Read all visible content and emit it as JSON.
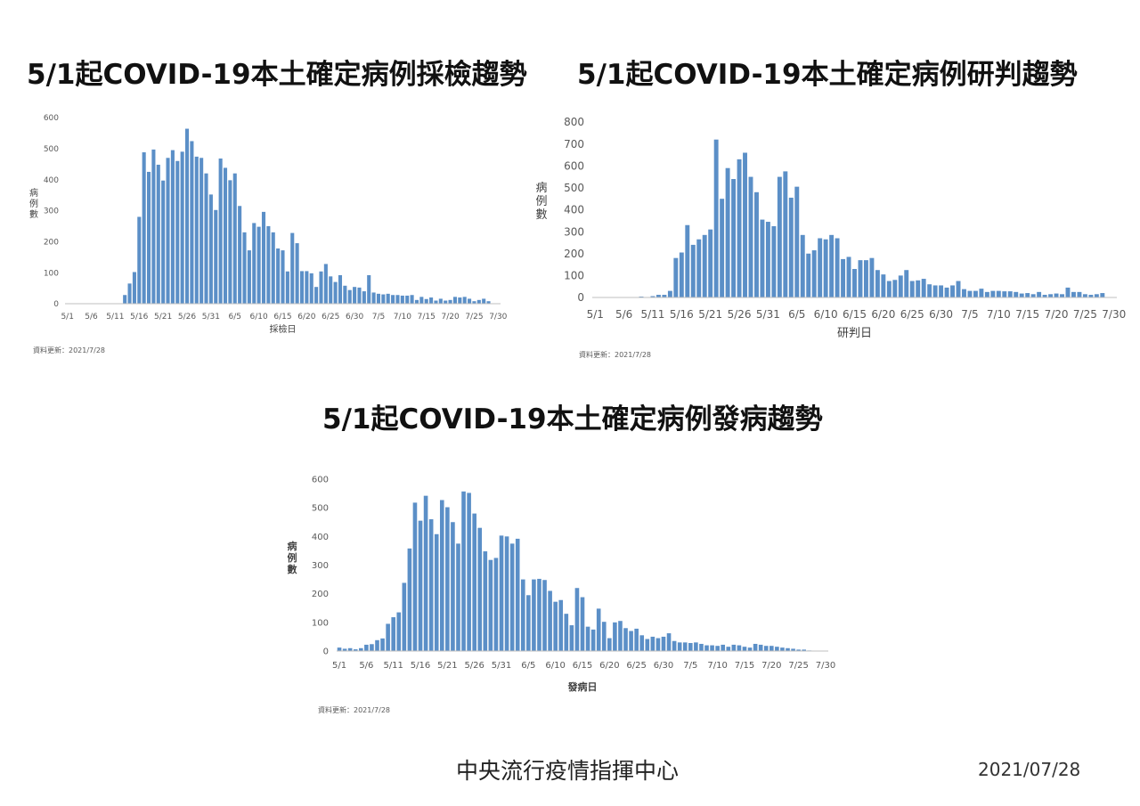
{
  "titles": {
    "testing": "5/1起COVID-19本土確定病例採檢趨勢",
    "confirmation": "5/1起COVID-19本土確定病例研判趨勢",
    "onset": "5/1起COVID-19本土確定病例發病趨勢"
  },
  "footer": {
    "organization": "中央流行疫情指揮中心",
    "date": "2021/07/28"
  },
  "colors": {
    "bar": "#5b8fc7",
    "axis": "#bfbfbf"
  },
  "chart_data": [
    {
      "id": "testing",
      "type": "bar",
      "title": "5/1起COVID-19本土確定病例採檢趨勢",
      "xlabel": "採檢日",
      "ylabel": "病例數",
      "ylim": [
        0,
        600
      ],
      "yticks": [
        0,
        100,
        200,
        300,
        400,
        500,
        600
      ],
      "xticks": [
        "5/1",
        "5/6",
        "5/11",
        "5/16",
        "5/21",
        "5/26",
        "5/31",
        "6/5",
        "6/10",
        "6/15",
        "6/20",
        "6/25",
        "6/30",
        "7/5",
        "7/10",
        "7/15",
        "7/20",
        "7/25",
        "7/30"
      ],
      "note": "資料更新：2021/7/28",
      "values": [
        0,
        0,
        0,
        0,
        0,
        0,
        0,
        0,
        0,
        0,
        0,
        0,
        28,
        65,
        102,
        280,
        488,
        425,
        497,
        448,
        397,
        470,
        495,
        460,
        490,
        564,
        524,
        474,
        470,
        420,
        352,
        302,
        468,
        438,
        398,
        420,
        315,
        230,
        172,
        260,
        248,
        296,
        250,
        230,
        178,
        172,
        104,
        228,
        195,
        105,
        105,
        98,
        54,
        104,
        128,
        88,
        70,
        92,
        58,
        44,
        54,
        52,
        40,
        92,
        36,
        32,
        30,
        32,
        28,
        28,
        26,
        26,
        28,
        12,
        22,
        15,
        20,
        10,
        16,
        10,
        12,
        22,
        20,
        22,
        16,
        8,
        12,
        16,
        8,
        0,
        0
      ]
    },
    {
      "id": "confirmation",
      "type": "bar",
      "title": "5/1起COVID-19本土確定病例研判趨勢",
      "xlabel": "研判日",
      "ylabel": "病例數",
      "ylim": [
        0,
        800
      ],
      "yticks": [
        0,
        100,
        200,
        300,
        400,
        500,
        600,
        700,
        800
      ],
      "xticks": [
        "5/1",
        "5/6",
        "5/11",
        "5/16",
        "5/21",
        "5/26",
        "5/31",
        "6/5",
        "6/10",
        "6/15",
        "6/20",
        "6/25",
        "6/30",
        "7/5",
        "7/10",
        "7/15",
        "7/20",
        "7/25",
        "7/30"
      ],
      "note": "資料更新：2021/7/28",
      "values": [
        1,
        2,
        0,
        0,
        0,
        0,
        1,
        2,
        4,
        2,
        6,
        12,
        12,
        30,
        180,
        205,
        330,
        240,
        265,
        285,
        310,
        720,
        450,
        590,
        540,
        630,
        660,
        550,
        480,
        355,
        345,
        325,
        550,
        575,
        455,
        505,
        285,
        200,
        215,
        270,
        265,
        285,
        270,
        175,
        185,
        130,
        170,
        170,
        180,
        125,
        105,
        75,
        80,
        100,
        125,
        75,
        78,
        85,
        60,
        55,
        55,
        45,
        55,
        75,
        38,
        30,
        30,
        40,
        25,
        30,
        30,
        28,
        28,
        25,
        18,
        20,
        15,
        25,
        12,
        15,
        18,
        15,
        45,
        25,
        25,
        15,
        12,
        15,
        20,
        0,
        0
      ]
    },
    {
      "id": "onset",
      "type": "bar",
      "title": "5/1起COVID-19本土確定病例發病趨勢",
      "xlabel": "發病日",
      "ylabel": "病例數",
      "ylim": [
        0,
        600
      ],
      "yticks": [
        0,
        100,
        200,
        300,
        400,
        500,
        600
      ],
      "xticks": [
        "5/1",
        "5/6",
        "5/11",
        "5/16",
        "5/21",
        "5/26",
        "5/31",
        "6/5",
        "6/10",
        "6/15",
        "6/20",
        "6/25",
        "6/30",
        "7/5",
        "7/10",
        "7/15",
        "7/20",
        "7/25",
        "7/30"
      ],
      "note": "資料更新：2021/7/28",
      "values": [
        12,
        8,
        10,
        6,
        10,
        22,
        24,
        38,
        44,
        95,
        118,
        135,
        238,
        358,
        518,
        455,
        542,
        460,
        408,
        527,
        502,
        450,
        375,
        557,
        552,
        480,
        430,
        348,
        318,
        325,
        403,
        400,
        375,
        392,
        250,
        195,
        250,
        252,
        248,
        210,
        172,
        178,
        130,
        90,
        220,
        188,
        85,
        75,
        148,
        102,
        45,
        100,
        105,
        80,
        70,
        78,
        55,
        42,
        50,
        45,
        50,
        62,
        35,
        30,
        30,
        28,
        30,
        25,
        20,
        20,
        18,
        22,
        15,
        22,
        20,
        15,
        12,
        25,
        22,
        18,
        18,
        15,
        12,
        10,
        8,
        5,
        5,
        2,
        1,
        0,
        0
      ]
    }
  ]
}
